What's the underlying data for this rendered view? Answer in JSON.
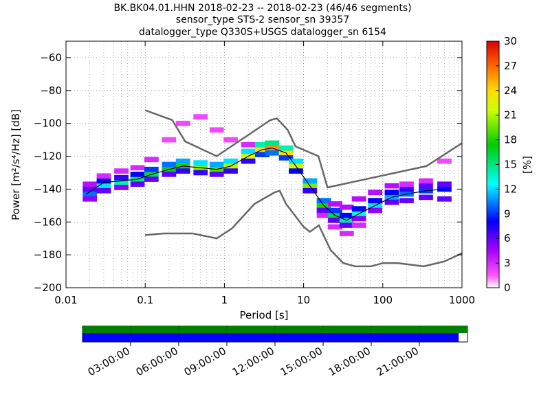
{
  "title_lines": [
    "BK.BK04.01.HHN   2018-02-23 -- 2018-02-23  (46/46 segments)",
    "sensor_type STS-2 sensor_sn 39357",
    "datalogger_type Q330S+USGS datalogger_sn 6154"
  ],
  "chart_data": {
    "type": "heatmap",
    "xlabel": "Period [s]",
    "ylabel": "Power [m²/s⁴/Hz] [dB]",
    "x_scale": "log",
    "xlim": [
      0.01,
      1000
    ],
    "ylim": [
      -200,
      -50
    ],
    "x_ticks": [
      "0.01",
      "0.1",
      "1",
      "10",
      "100",
      "1000"
    ],
    "y_ticks": [
      "−200",
      "−180",
      "−160",
      "−140",
      "−120",
      "−100",
      "−80",
      "−60"
    ],
    "colorbar": {
      "label": "[%]",
      "range": [
        0,
        30
      ],
      "ticks": [
        "0",
        "3",
        "6",
        "9",
        "12",
        "15",
        "18",
        "21",
        "24",
        "27",
        "30"
      ],
      "colormap": "pqlx"
    },
    "grid": true,
    "density_cells": [
      {
        "period": 0.02,
        "db": -143,
        "pct": 10
      },
      {
        "period": 0.02,
        "db": -140,
        "pct": 6
      },
      {
        "period": 0.02,
        "db": -137,
        "pct": 4
      },
      {
        "period": 0.02,
        "db": -146,
        "pct": 5
      },
      {
        "period": 0.03,
        "db": -138,
        "pct": 12
      },
      {
        "period": 0.03,
        "db": -135,
        "pct": 8
      },
      {
        "period": 0.03,
        "db": -141,
        "pct": 6
      },
      {
        "period": 0.03,
        "db": -132,
        "pct": 3
      },
      {
        "period": 0.05,
        "db": -136,
        "pct": 14
      },
      {
        "period": 0.05,
        "db": -133,
        "pct": 7
      },
      {
        "period": 0.05,
        "db": -139,
        "pct": 5
      },
      {
        "period": 0.05,
        "db": -129,
        "pct": 3
      },
      {
        "period": 0.08,
        "db": -134,
        "pct": 15
      },
      {
        "period": 0.08,
        "db": -131,
        "pct": 8
      },
      {
        "period": 0.08,
        "db": -137,
        "pct": 6
      },
      {
        "period": 0.08,
        "db": -127,
        "pct": 3
      },
      {
        "period": 0.12,
        "db": -131,
        "pct": 16
      },
      {
        "period": 0.12,
        "db": -128,
        "pct": 9
      },
      {
        "period": 0.12,
        "db": -134,
        "pct": 6
      },
      {
        "period": 0.12,
        "db": -122,
        "pct": 3
      },
      {
        "period": 0.2,
        "db": -128,
        "pct": 17
      },
      {
        "period": 0.2,
        "db": -125,
        "pct": 10
      },
      {
        "period": 0.2,
        "db": -131,
        "pct": 6
      },
      {
        "period": 0.2,
        "db": -110,
        "pct": 2
      },
      {
        "period": 0.3,
        "db": -126,
        "pct": 18
      },
      {
        "period": 0.3,
        "db": -123,
        "pct": 11
      },
      {
        "period": 0.3,
        "db": -129,
        "pct": 7
      },
      {
        "period": 0.3,
        "db": -100,
        "pct": 2
      },
      {
        "period": 0.5,
        "db": -127,
        "pct": 20
      },
      {
        "period": 0.5,
        "db": -124,
        "pct": 12
      },
      {
        "period": 0.5,
        "db": -130,
        "pct": 7
      },
      {
        "period": 0.5,
        "db": -96,
        "pct": 2
      },
      {
        "period": 0.8,
        "db": -128,
        "pct": 19
      },
      {
        "period": 0.8,
        "db": -125,
        "pct": 11
      },
      {
        "period": 0.8,
        "db": -131,
        "pct": 6
      },
      {
        "period": 0.8,
        "db": -104,
        "pct": 2
      },
      {
        "period": 1.2,
        "db": -126,
        "pct": 21
      },
      {
        "period": 1.2,
        "db": -123,
        "pct": 12
      },
      {
        "period": 1.2,
        "db": -129,
        "pct": 7
      },
      {
        "period": 1.2,
        "db": -110,
        "pct": 2
      },
      {
        "period": 2,
        "db": -120,
        "pct": 22
      },
      {
        "period": 2,
        "db": -117,
        "pct": 12
      },
      {
        "period": 2,
        "db": -123,
        "pct": 7
      },
      {
        "period": 2,
        "db": -113,
        "pct": 3
      },
      {
        "period": 3,
        "db": -116,
        "pct": 24
      },
      {
        "period": 3,
        "db": -113,
        "pct": 14
      },
      {
        "period": 3,
        "db": -119,
        "pct": 9
      },
      {
        "period": 4,
        "db": -115,
        "pct": 26
      },
      {
        "period": 4,
        "db": -112,
        "pct": 15
      },
      {
        "period": 4,
        "db": -118,
        "pct": 10
      },
      {
        "period": 6,
        "db": -118,
        "pct": 24
      },
      {
        "period": 6,
        "db": -115,
        "pct": 14
      },
      {
        "period": 6,
        "db": -121,
        "pct": 9
      },
      {
        "period": 8,
        "db": -126,
        "pct": 22
      },
      {
        "period": 8,
        "db": -123,
        "pct": 12
      },
      {
        "period": 8,
        "db": -129,
        "pct": 8
      },
      {
        "period": 12,
        "db": -138,
        "pct": 20
      },
      {
        "period": 12,
        "db": -135,
        "pct": 11
      },
      {
        "period": 12,
        "db": -141,
        "pct": 7
      },
      {
        "period": 18,
        "db": -150,
        "pct": 18
      },
      {
        "period": 18,
        "db": -147,
        "pct": 10
      },
      {
        "period": 18,
        "db": -153,
        "pct": 6
      },
      {
        "period": 18,
        "db": -156,
        "pct": 3
      },
      {
        "period": 25,
        "db": -156,
        "pct": 16
      },
      {
        "period": 25,
        "db": -153,
        "pct": 9
      },
      {
        "period": 25,
        "db": -159,
        "pct": 6
      },
      {
        "period": 25,
        "db": -163,
        "pct": 3
      },
      {
        "period": 25,
        "db": -149,
        "pct": 4
      },
      {
        "period": 35,
        "db": -159,
        "pct": 14
      },
      {
        "period": 35,
        "db": -156,
        "pct": 8
      },
      {
        "period": 35,
        "db": -162,
        "pct": 6
      },
      {
        "period": 35,
        "db": -167,
        "pct": 3
      },
      {
        "period": 35,
        "db": -151,
        "pct": 4
      },
      {
        "period": 50,
        "db": -155,
        "pct": 13
      },
      {
        "period": 50,
        "db": -152,
        "pct": 8
      },
      {
        "period": 50,
        "db": -158,
        "pct": 5
      },
      {
        "period": 50,
        "db": -146,
        "pct": 4
      },
      {
        "period": 50,
        "db": -162,
        "pct": 3
      },
      {
        "period": 80,
        "db": -150,
        "pct": 12
      },
      {
        "period": 80,
        "db": -147,
        "pct": 8
      },
      {
        "period": 80,
        "db": -153,
        "pct": 5
      },
      {
        "period": 80,
        "db": -142,
        "pct": 4
      },
      {
        "period": 130,
        "db": -145,
        "pct": 11
      },
      {
        "period": 130,
        "db": -142,
        "pct": 8
      },
      {
        "period": 130,
        "db": -148,
        "pct": 6
      },
      {
        "period": 130,
        "db": -138,
        "pct": 4
      },
      {
        "period": 200,
        "db": -143,
        "pct": 10
      },
      {
        "period": 200,
        "db": -140,
        "pct": 7
      },
      {
        "period": 200,
        "db": -147,
        "pct": 6
      },
      {
        "period": 200,
        "db": -137,
        "pct": 3
      },
      {
        "period": 350,
        "db": -141,
        "pct": 9
      },
      {
        "period": 350,
        "db": -138,
        "pct": 6
      },
      {
        "period": 350,
        "db": -145,
        "pct": 6
      },
      {
        "period": 350,
        "db": -135,
        "pct": 3
      },
      {
        "period": 600,
        "db": -140,
        "pct": 8
      },
      {
        "period": 600,
        "db": -137,
        "pct": 6
      },
      {
        "period": 600,
        "db": -146,
        "pct": 6
      },
      {
        "period": 600,
        "db": -123,
        "pct": 2
      }
    ],
    "mode_curve": [
      {
        "period": 0.018,
        "db": -143
      },
      {
        "period": 0.03,
        "db": -136
      },
      {
        "period": 0.05,
        "db": -135
      },
      {
        "period": 0.08,
        "db": -134
      },
      {
        "period": 0.12,
        "db": -131
      },
      {
        "period": 0.2,
        "db": -128
      },
      {
        "period": 0.3,
        "db": -126
      },
      {
        "period": 0.5,
        "db": -127
      },
      {
        "period": 0.8,
        "db": -128
      },
      {
        "period": 1.2,
        "db": -126
      },
      {
        "period": 2,
        "db": -120
      },
      {
        "period": 3,
        "db": -116
      },
      {
        "period": 4,
        "db": -115
      },
      {
        "period": 6,
        "db": -118
      },
      {
        "period": 8,
        "db": -126
      },
      {
        "period": 12,
        "db": -138
      },
      {
        "period": 18,
        "db": -150
      },
      {
        "period": 25,
        "db": -156
      },
      {
        "period": 35,
        "db": -159
      },
      {
        "period": 50,
        "db": -155
      },
      {
        "period": 80,
        "db": -150
      },
      {
        "period": 130,
        "db": -145
      },
      {
        "period": 200,
        "db": -143
      },
      {
        "period": 350,
        "db": -141
      },
      {
        "period": 600,
        "db": -140
      }
    ],
    "nhnm": [
      {
        "period": 0.1,
        "db": -92
      },
      {
        "period": 0.22,
        "db": -98
      },
      {
        "period": 0.32,
        "db": -111
      },
      {
        "period": 0.8,
        "db": -120
      },
      {
        "period": 3.8,
        "db": -98
      },
      {
        "period": 4.6,
        "db": -97
      },
      {
        "period": 6.3,
        "db": -104
      },
      {
        "period": 7.9,
        "db": -114
      },
      {
        "period": 15.4,
        "db": -120
      },
      {
        "period": 20,
        "db": -139
      },
      {
        "period": 354.8,
        "db": -126
      },
      {
        "period": 1000,
        "db": -112
      }
    ],
    "nlnm": [
      {
        "period": 0.1,
        "db": -168
      },
      {
        "period": 0.17,
        "db": -167
      },
      {
        "period": 0.4,
        "db": -167
      },
      {
        "period": 0.8,
        "db": -170
      },
      {
        "period": 1.24,
        "db": -164
      },
      {
        "period": 2.4,
        "db": -149
      },
      {
        "period": 4.3,
        "db": -142
      },
      {
        "period": 5,
        "db": -141
      },
      {
        "period": 6,
        "db": -149
      },
      {
        "period": 10,
        "db": -163
      },
      {
        "period": 12,
        "db": -166
      },
      {
        "period": 15.6,
        "db": -162
      },
      {
        "period": 21.9,
        "db": -177
      },
      {
        "period": 31.6,
        "db": -185
      },
      {
        "period": 45,
        "db": -187
      },
      {
        "period": 70,
        "db": -187
      },
      {
        "period": 101,
        "db": -185
      },
      {
        "period": 154,
        "db": -185
      },
      {
        "period": 328,
        "db": -187
      },
      {
        "period": 600,
        "db": -184
      },
      {
        "period": 1000,
        "db": -179
      }
    ],
    "coverage": {
      "time_ticks": [
        "03:00:00",
        "06:00:00",
        "09:00:00",
        "12:00:00",
        "15:00:00",
        "18:00:00",
        "21:00:00"
      ],
      "data_fraction": 0.977,
      "psd_fraction": 1.0,
      "data_color": "#0000ff",
      "psd_color": "#008000"
    }
  }
}
